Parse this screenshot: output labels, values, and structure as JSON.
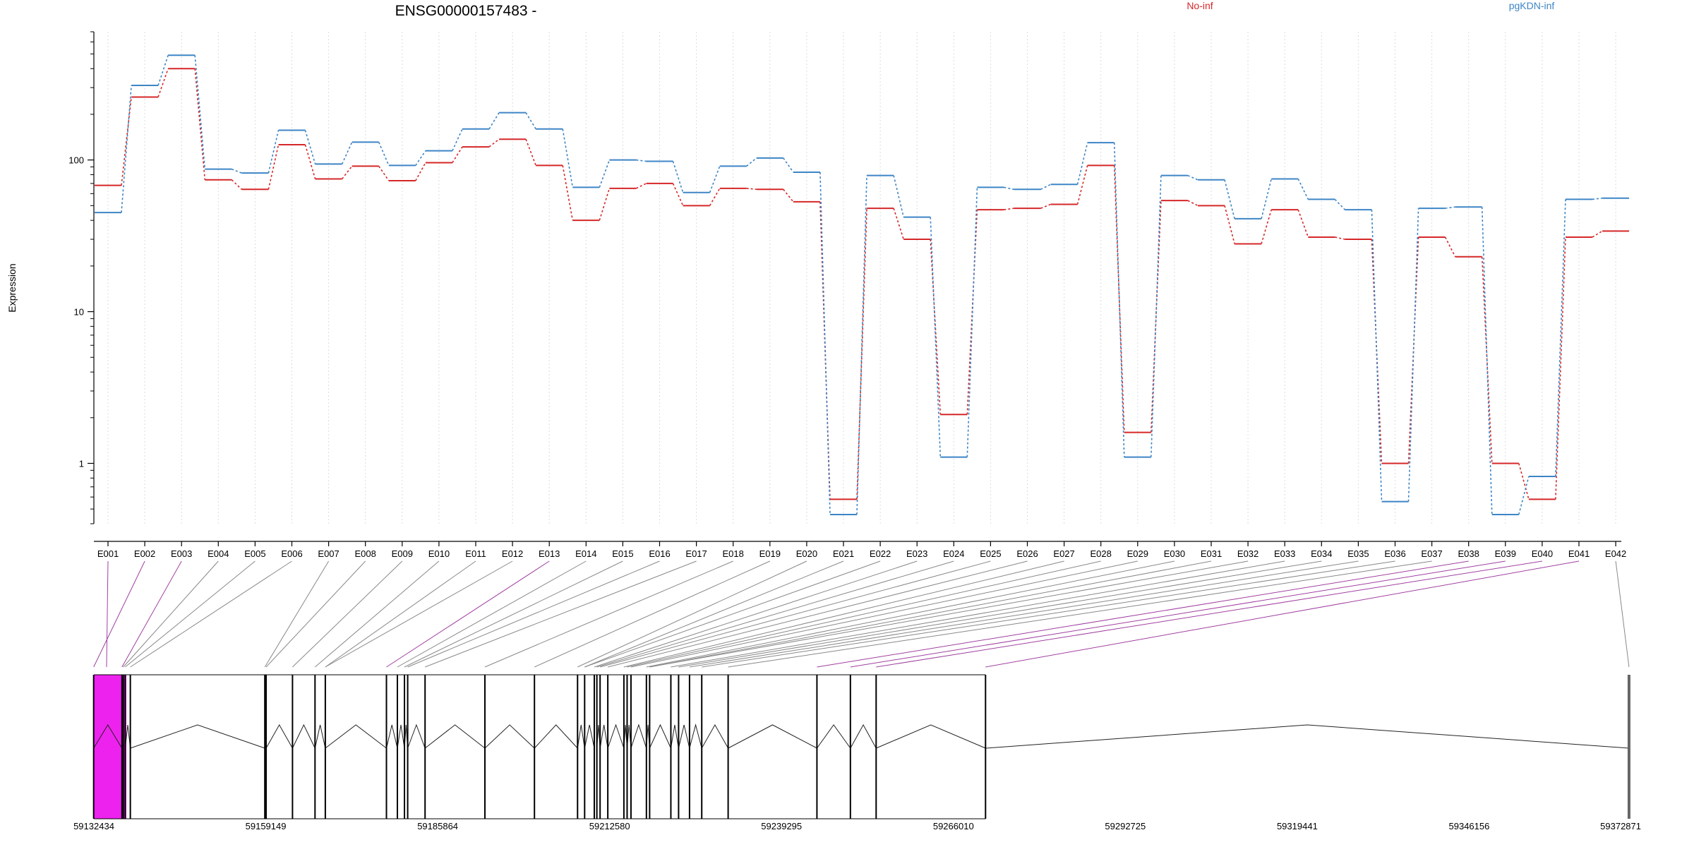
{
  "chart_data": {
    "type": "line",
    "title": "ENSG00000157483 -",
    "ylabel": "Expression",
    "yscale": "log",
    "ylim": [
      0.4,
      700
    ],
    "yticks": [
      {
        "v": 1,
        "label": "1"
      },
      {
        "v": 10,
        "label": "10"
      },
      {
        "v": 100,
        "label": "100"
      }
    ],
    "grid": "vertical dotted",
    "legend_position": "top-right",
    "categories": [
      "E001",
      "E002",
      "E003",
      "E004",
      "E005",
      "E006",
      "E007",
      "E008",
      "E009",
      "E010",
      "E011",
      "E012",
      "E013",
      "E014",
      "E015",
      "E016",
      "E017",
      "E018",
      "E019",
      "E020",
      "E021",
      "E022",
      "E023",
      "E024",
      "E025",
      "E026",
      "E027",
      "E028",
      "E029",
      "E030",
      "E031",
      "E032",
      "E033",
      "E034",
      "E035",
      "E036",
      "E037",
      "E038",
      "E039",
      "E040",
      "E041",
      "E042"
    ],
    "series": [
      {
        "name": "No-inf",
        "color": "#d62728",
        "values": [
          68,
          260,
          400,
          74,
          64,
          126,
          75,
          91,
          73,
          96,
          122,
          137,
          92,
          40,
          65,
          70,
          50,
          65,
          64,
          53,
          0.58,
          48,
          30,
          2.1,
          47,
          48,
          51,
          92,
          1.6,
          54,
          50,
          28,
          47,
          31,
          30,
          1.0,
          31,
          23,
          1.0,
          0.58,
          31,
          34
        ]
      },
      {
        "name": "pgKDN-inf",
        "color": "#3d85c6",
        "values": [
          45,
          310,
          490,
          87,
          82,
          157,
          94,
          131,
          92,
          115,
          160,
          205,
          160,
          66,
          100,
          98,
          61,
          91,
          103,
          83,
          0.46,
          79,
          42,
          1.1,
          66,
          64,
          69,
          130,
          1.1,
          79,
          74,
          41,
          75,
          55,
          47,
          0.56,
          48,
          49,
          0.46,
          0.82,
          55,
          56
        ]
      }
    ],
    "genomic_ticks": [
      "59132434",
      "59159149",
      "59185864",
      "59212580",
      "59239295",
      "59266010",
      "59292725",
      "59319441",
      "59346156",
      "59372871"
    ],
    "gene_model": {
      "start": 59132434,
      "end": 59372871,
      "exons": [
        59132400,
        59136800,
        59137000,
        59137300,
        59138100,
        59159000,
        59159200,
        59163300,
        59166800,
        59168400,
        59177900,
        59179600,
        59180700,
        59181200,
        59183900,
        59193200,
        59200900,
        59207600,
        59208700,
        59210200,
        59210600,
        59211100,
        59212300,
        59214800,
        59215300,
        59215900,
        59218300,
        59218800,
        59222100,
        59223300,
        59225000,
        59226900,
        59231000,
        59244800,
        59250000,
        59254000,
        59271000,
        59371000
      ],
      "highlight_color": "#ee22ee"
    }
  }
}
